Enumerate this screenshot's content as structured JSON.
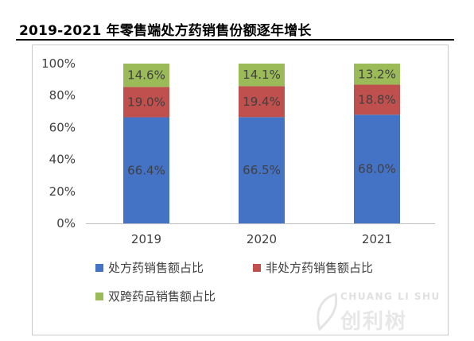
{
  "chart_data": {
    "type": "bar",
    "stacked": true,
    "title": "2019-2021 年零售端处方药销售份额逐年增长",
    "categories": [
      "2019",
      "2020",
      "2021"
    ],
    "yticks": [
      "0%",
      "20%",
      "40%",
      "60%",
      "80%",
      "100%"
    ],
    "ylim": [
      0,
      100
    ],
    "grid": false,
    "legend_position": "bottom",
    "series": [
      {
        "name": "处方药销售额占比",
        "color": "#4472C4",
        "values": [
          66.4,
          66.5,
          68.0
        ],
        "labels": [
          "66.4%",
          "66.5%",
          "68.0%"
        ]
      },
      {
        "name": "非处方药销售额占比",
        "color": "#C0504D",
        "values": [
          19.0,
          19.4,
          18.8
        ],
        "labels": [
          "19.0%",
          "19.4%",
          "18.8%"
        ]
      },
      {
        "name": "双跨药品销售额占比",
        "color": "#9BBB59",
        "values": [
          14.6,
          14.1,
          13.2
        ],
        "labels": [
          "14.6%",
          "14.1%",
          "13.2%"
        ]
      }
    ]
  },
  "watermark": {
    "text_en": "CHUANG LI SHU",
    "text_cn": "创利树"
  }
}
